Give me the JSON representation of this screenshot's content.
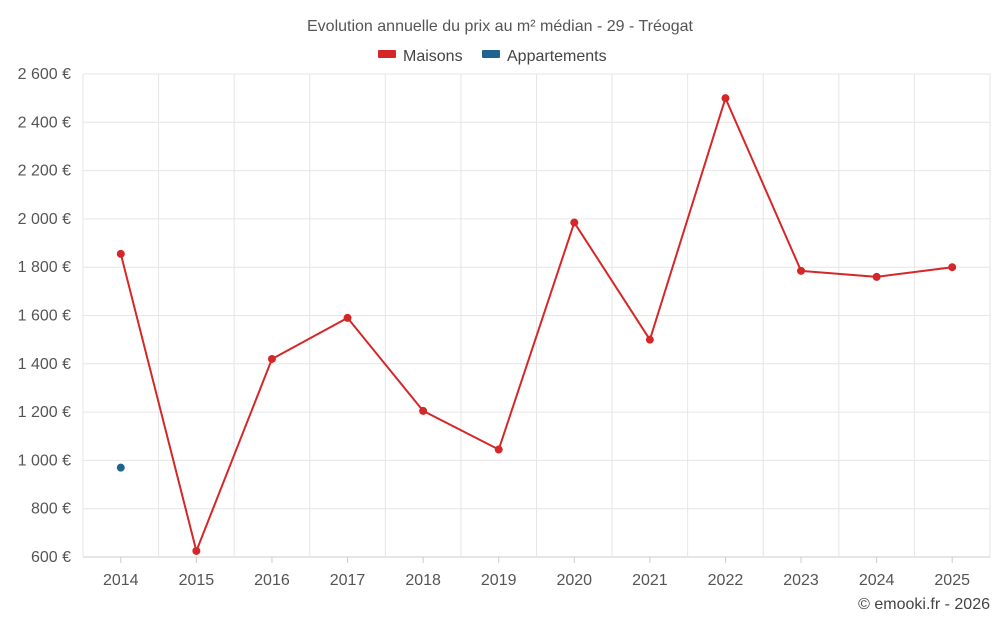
{
  "chart_data": {
    "type": "line",
    "title": "Evolution annuelle du prix au m² médian - 29 - Tréogat",
    "categories": [
      "2014",
      "2015",
      "2016",
      "2017",
      "2018",
      "2019",
      "2020",
      "2021",
      "2022",
      "2023",
      "2024",
      "2025"
    ],
    "series": [
      {
        "name": "Maisons",
        "color": "#d62728",
        "values": [
          1855,
          625,
          1420,
          1590,
          1205,
          1045,
          1985,
          1500,
          2500,
          1785,
          1760,
          1800
        ]
      },
      {
        "name": "Appartements",
        "color": "#1f6391",
        "values": [
          970,
          null,
          null,
          null,
          null,
          null,
          null,
          null,
          null,
          null,
          null,
          null
        ]
      }
    ],
    "ylim": [
      600,
      2600
    ],
    "yticks": [
      600,
      800,
      1000,
      1200,
      1400,
      1600,
      1800,
      2000,
      2200,
      2400,
      2600
    ],
    "ytick_labels": [
      "600 €",
      "800 €",
      "1 000 €",
      "1 200 €",
      "1 400 €",
      "1 600 €",
      "1 800 €",
      "2 000 €",
      "2 200 €",
      "2 400 €",
      "2 600 €"
    ],
    "xlabel": "",
    "ylabel": "",
    "grid": true,
    "legend_position": "top-center"
  },
  "credit": "© emooki.fr - 2026"
}
